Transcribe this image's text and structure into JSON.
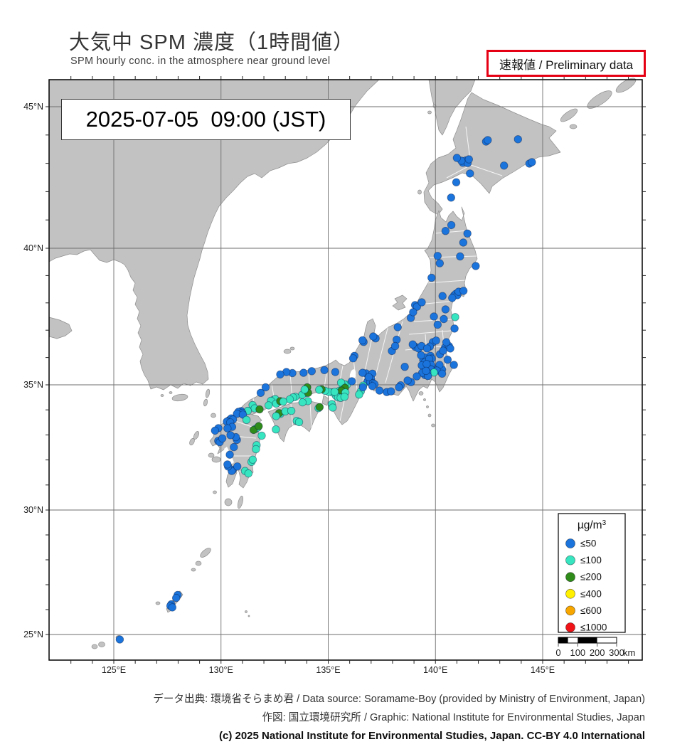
{
  "header": {
    "title": "大気中 SPM 濃度（1時間値）",
    "subtitle": "SPM hourly conc. in the atmosphere near ground level",
    "preliminary": "速報値 / Preliminary data"
  },
  "map": {
    "timestamp": "2025-07-05  09:00 (JST)",
    "lat_ticks": [
      {
        "deg": 45,
        "label": "45°N"
      },
      {
        "deg": 40,
        "label": "40°N"
      },
      {
        "deg": 35,
        "label": "35°N"
      },
      {
        "deg": 30,
        "label": "30°N"
      },
      {
        "deg": 25,
        "label": "25°N"
      }
    ],
    "lon_ticks": [
      {
        "deg": 125,
        "label": "125°E"
      },
      {
        "deg": 130,
        "label": "130°E"
      },
      {
        "deg": 135,
        "label": "135°E"
      },
      {
        "deg": 140,
        "label": "140°E"
      },
      {
        "deg": 145,
        "label": "145°E"
      }
    ],
    "legend": {
      "title_prefix": "µg/m",
      "title_sup": "3",
      "items": [
        {
          "label": "≤50",
          "color": "#1b74db"
        },
        {
          "label": "≤100",
          "color": "#37e5c0"
        },
        {
          "label": "≤200",
          "color": "#2f8c1a"
        },
        {
          "label": "≤400",
          "color": "#fff000"
        },
        {
          "label": "≤600",
          "color": "#f7a600"
        },
        {
          "label": "≤1000",
          "color": "#f01418"
        }
      ]
    },
    "scalebar": {
      "tick_labels": [
        "0",
        "100",
        "200",
        "300"
      ],
      "unit": "km",
      "max_km": 300,
      "segments": [
        [
          0,
          50,
          "#000"
        ],
        [
          50,
          100,
          "#fff"
        ],
        [
          100,
          200,
          "#000"
        ],
        [
          200,
          300,
          "#fff"
        ]
      ]
    }
  },
  "footer": {
    "source_line": "データ出典: 環境省そらまめ君 / Data source: Soramame-Boy (provided by Ministry of Environment, Japan)",
    "graphic_line": "作図: 国立環境研究所 / Graphic: National Institute for Environmental Studies, Japan",
    "copyright_line": "(c) 2025 National Institute for Environmental Studies, Japan. CC-BY 4.0 International"
  },
  "chart_data": {
    "type": "scatter-map",
    "title": "SPM hourly concentration, 2025-07-05 09:00 JST",
    "units": "µg/m³",
    "categories": [
      "≤50",
      "≤100",
      "≤200",
      "≤400",
      "≤600",
      "≤1000"
    ],
    "columns": [
      "lon_deg",
      "lat_deg",
      "category_index"
    ],
    "stations": [
      [
        141.35,
        43.06,
        0
      ],
      [
        141.42,
        43.1,
        0
      ],
      [
        141.28,
        43.02,
        0
      ],
      [
        141.5,
        43.01,
        0
      ],
      [
        141.21,
        43.09,
        0
      ],
      [
        141.56,
        43.14,
        0
      ],
      [
        141.0,
        43.19,
        0
      ],
      [
        141.61,
        42.64,
        0
      ],
      [
        140.97,
        42.33,
        0
      ],
      [
        140.73,
        41.79,
        0
      ],
      [
        142.36,
        43.77,
        0
      ],
      [
        142.44,
        43.82,
        0
      ],
      [
        143.2,
        42.92,
        0
      ],
      [
        143.85,
        43.85,
        0
      ],
      [
        144.38,
        42.99,
        0
      ],
      [
        144.5,
        43.04,
        0
      ],
      [
        140.74,
        40.82,
        0
      ],
      [
        140.47,
        40.61,
        0
      ],
      [
        141.49,
        40.52,
        0
      ],
      [
        141.3,
        40.2,
        0
      ],
      [
        141.15,
        39.7,
        0
      ],
      [
        141.88,
        39.35,
        0
      ],
      [
        140.1,
        39.72,
        0
      ],
      [
        140.2,
        39.45,
        0
      ],
      [
        139.82,
        38.92,
        0
      ],
      [
        140.33,
        38.25,
        0
      ],
      [
        140.87,
        38.27,
        0
      ],
      [
        140.95,
        38.33,
        0
      ],
      [
        141.02,
        38.28,
        0
      ],
      [
        141.08,
        38.41,
        0
      ],
      [
        141.31,
        38.44,
        0
      ],
      [
        140.78,
        38.18,
        0
      ],
      [
        140.47,
        37.76,
        0
      ],
      [
        140.39,
        37.41,
        0
      ],
      [
        140.89,
        37.06,
        0
      ],
      [
        140.92,
        37.48,
        1
      ],
      [
        139.93,
        37.5,
        0
      ],
      [
        140.1,
        37.2,
        0
      ],
      [
        139.05,
        37.92,
        0
      ],
      [
        139.14,
        37.86,
        0
      ],
      [
        138.85,
        37.45,
        0
      ],
      [
        138.96,
        37.66,
        0
      ],
      [
        139.36,
        38.02,
        0
      ],
      [
        138.24,
        37.11,
        0
      ],
      [
        137.21,
        36.7,
        0
      ],
      [
        137.1,
        36.77,
        0
      ],
      [
        136.65,
        36.57,
        0
      ],
      [
        136.6,
        36.63,
        0
      ],
      [
        136.22,
        36.06,
        0
      ],
      [
        136.16,
        35.97,
        0
      ],
      [
        138.19,
        36.65,
        0
      ],
      [
        137.97,
        36.24,
        0
      ],
      [
        138.12,
        36.42,
        0
      ],
      [
        138.57,
        35.66,
        0
      ],
      [
        136.76,
        35.42,
        0
      ],
      [
        137.06,
        35.41,
        0
      ],
      [
        136.6,
        35.44,
        0
      ],
      [
        139.06,
        36.39,
        0
      ],
      [
        139.21,
        36.33,
        0
      ],
      [
        138.94,
        36.48,
        0
      ],
      [
        139.35,
        36.42,
        0
      ],
      [
        139.88,
        36.56,
        0
      ],
      [
        139.74,
        36.4,
        0
      ],
      [
        140.03,
        36.62,
        0
      ],
      [
        139.61,
        36.33,
        0
      ],
      [
        140.45,
        36.37,
        0
      ],
      [
        140.63,
        36.42,
        0
      ],
      [
        140.21,
        36.12,
        0
      ],
      [
        140.51,
        36.56,
        0
      ],
      [
        140.69,
        36.33,
        0
      ],
      [
        140.36,
        36.25,
        0
      ],
      [
        139.65,
        35.86,
        0
      ],
      [
        139.43,
        35.91,
        0
      ],
      [
        139.56,
        36.0,
        0
      ],
      [
        139.77,
        36.06,
        0
      ],
      [
        139.83,
        35.96,
        0
      ],
      [
        139.33,
        36.08,
        0
      ],
      [
        139.5,
        35.82,
        0
      ],
      [
        139.71,
        35.95,
        0
      ],
      [
        139.7,
        35.69,
        0
      ],
      [
        139.53,
        35.7,
        0
      ],
      [
        139.8,
        35.73,
        0
      ],
      [
        139.45,
        35.66,
        0
      ],
      [
        139.64,
        35.61,
        0
      ],
      [
        139.78,
        35.57,
        0
      ],
      [
        139.36,
        35.71,
        0
      ],
      [
        139.59,
        35.76,
        0
      ],
      [
        140.12,
        35.61,
        0
      ],
      [
        140.31,
        35.56,
        0
      ],
      [
        140.19,
        35.73,
        0
      ],
      [
        140.06,
        35.52,
        0
      ],
      [
        140.86,
        35.73,
        0
      ],
      [
        140.31,
        35.41,
        0
      ],
      [
        139.93,
        35.45,
        1
      ],
      [
        139.62,
        35.45,
        0
      ],
      [
        139.51,
        35.36,
        0
      ],
      [
        139.38,
        35.44,
        0
      ],
      [
        139.13,
        35.31,
        0
      ],
      [
        139.65,
        35.32,
        0
      ],
      [
        139.56,
        35.51,
        0
      ],
      [
        140.57,
        35.92,
        0
      ],
      [
        138.38,
        34.98,
        0
      ],
      [
        138.86,
        35.1,
        0
      ],
      [
        138.7,
        35.16,
        0
      ],
      [
        138.3,
        34.9,
        0
      ],
      [
        137.73,
        34.71,
        0
      ],
      [
        137.93,
        34.74,
        0
      ],
      [
        136.91,
        35.18,
        0
      ],
      [
        137.0,
        35.21,
        0
      ],
      [
        136.83,
        35.12,
        0
      ],
      [
        136.96,
        35.1,
        0
      ],
      [
        137.09,
        35.06,
        0
      ],
      [
        136.89,
        35.28,
        0
      ],
      [
        137.16,
        35.02,
        0
      ],
      [
        137.06,
        34.95,
        0
      ],
      [
        137.39,
        34.77,
        0
      ],
      [
        136.63,
        34.97,
        1
      ],
      [
        136.52,
        34.74,
        1
      ],
      [
        136.62,
        34.9,
        0
      ],
      [
        136.44,
        34.61,
        1
      ],
      [
        135.87,
        35.0,
        1
      ],
      [
        136.1,
        35.13,
        0
      ],
      [
        135.75,
        35.02,
        1
      ],
      [
        135.68,
        34.94,
        1
      ],
      [
        135.6,
        35.08,
        1
      ],
      [
        135.78,
        34.88,
        2
      ],
      [
        135.5,
        34.68,
        1
      ],
      [
        135.44,
        34.62,
        1
      ],
      [
        135.54,
        34.56,
        1
      ],
      [
        135.4,
        34.7,
        1
      ],
      [
        135.6,
        34.64,
        1
      ],
      [
        135.36,
        34.56,
        1
      ],
      [
        135.52,
        34.76,
        1
      ],
      [
        135.62,
        34.77,
        2
      ],
      [
        135.46,
        34.5,
        1
      ],
      [
        135.58,
        34.48,
        1
      ],
      [
        135.19,
        34.7,
        1
      ],
      [
        135.02,
        34.72,
        1
      ],
      [
        134.85,
        34.76,
        1
      ],
      [
        134.69,
        34.82,
        2
      ],
      [
        134.58,
        34.8,
        1
      ],
      [
        135.3,
        34.72,
        1
      ],
      [
        135.8,
        34.69,
        1
      ],
      [
        135.76,
        34.52,
        1
      ],
      [
        135.17,
        34.23,
        1
      ],
      [
        135.21,
        34.09,
        1
      ],
      [
        135.33,
        35.47,
        0
      ],
      [
        134.82,
        35.54,
        0
      ],
      [
        134.23,
        35.5,
        0
      ],
      [
        133.85,
        35.44,
        0
      ],
      [
        133.33,
        35.43,
        0
      ],
      [
        133.05,
        35.47,
        0
      ],
      [
        132.76,
        35.38,
        0
      ],
      [
        132.08,
        34.9,
        0
      ],
      [
        131.85,
        34.68,
        0
      ],
      [
        134.02,
        34.9,
        2
      ],
      [
        133.92,
        34.66,
        1
      ],
      [
        133.78,
        34.6,
        1
      ],
      [
        133.47,
        34.52,
        1
      ],
      [
        134.06,
        34.68,
        2
      ],
      [
        133.9,
        34.81,
        1
      ],
      [
        133.36,
        34.5,
        1
      ],
      [
        133.21,
        34.42,
        1
      ],
      [
        132.46,
        34.4,
        1
      ],
      [
        132.53,
        34.43,
        1
      ],
      [
        132.33,
        34.36,
        1
      ],
      [
        132.57,
        34.25,
        1
      ],
      [
        132.76,
        34.35,
        2
      ],
      [
        132.9,
        34.33,
        1
      ],
      [
        132.22,
        34.18,
        1
      ],
      [
        131.47,
        34.19,
        1
      ],
      [
        131.57,
        34.06,
        1
      ],
      [
        131.25,
        33.96,
        1
      ],
      [
        130.94,
        33.95,
        0
      ],
      [
        131.8,
        34.02,
        2
      ],
      [
        134.05,
        34.35,
        1
      ],
      [
        133.8,
        34.3,
        1
      ],
      [
        134.55,
        34.07,
        1
      ],
      [
        134.6,
        34.11,
        2
      ],
      [
        132.77,
        33.84,
        1
      ],
      [
        132.71,
        33.87,
        2
      ],
      [
        133.0,
        33.94,
        1
      ],
      [
        133.28,
        33.96,
        1
      ],
      [
        132.57,
        33.75,
        1
      ],
      [
        133.53,
        33.56,
        1
      ],
      [
        133.64,
        33.51,
        1
      ],
      [
        132.56,
        33.22,
        1
      ],
      [
        130.88,
        33.89,
        0
      ],
      [
        130.81,
        33.92,
        0
      ],
      [
        130.99,
        33.88,
        0
      ],
      [
        130.74,
        33.84,
        0
      ],
      [
        131.02,
        33.81,
        0
      ],
      [
        130.4,
        33.6,
        0
      ],
      [
        130.35,
        33.56,
        0
      ],
      [
        130.48,
        33.66,
        0
      ],
      [
        130.27,
        33.53,
        0
      ],
      [
        130.56,
        33.61,
        0
      ],
      [
        130.43,
        33.5,
        0
      ],
      [
        130.52,
        33.32,
        0
      ],
      [
        130.3,
        33.26,
        0
      ],
      [
        129.88,
        33.27,
        0
      ],
      [
        129.72,
        33.17,
        0
      ],
      [
        129.87,
        32.76,
        0
      ],
      [
        129.94,
        32.71,
        0
      ],
      [
        130.06,
        32.86,
        0
      ],
      [
        130.74,
        32.8,
        0
      ],
      [
        130.69,
        32.91,
        0
      ],
      [
        130.44,
        32.99,
        0
      ],
      [
        130.6,
        32.51,
        0
      ],
      [
        130.41,
        32.21,
        0
      ],
      [
        131.61,
        33.24,
        1
      ],
      [
        131.71,
        33.29,
        1
      ],
      [
        131.52,
        33.2,
        2
      ],
      [
        131.76,
        33.35,
        2
      ],
      [
        131.19,
        33.6,
        1
      ],
      [
        131.9,
        32.97,
        1
      ],
      [
        131.66,
        32.59,
        1
      ],
      [
        131.63,
        32.43,
        1
      ],
      [
        131.42,
        31.92,
        1
      ],
      [
        131.48,
        32.01,
        1
      ],
      [
        131.12,
        31.56,
        1
      ],
      [
        131.28,
        31.46,
        1
      ],
      [
        130.55,
        31.6,
        0
      ],
      [
        130.5,
        31.56,
        0
      ],
      [
        130.33,
        31.74,
        0
      ],
      [
        130.3,
        31.82,
        0
      ],
      [
        130.76,
        31.74,
        0
      ],
      [
        127.68,
        26.21,
        0
      ],
      [
        127.64,
        26.15,
        0
      ],
      [
        127.73,
        26.09,
        0
      ],
      [
        127.98,
        26.59,
        0
      ],
      [
        127.91,
        26.47,
        0
      ],
      [
        125.28,
        24.8,
        0
      ]
    ]
  }
}
